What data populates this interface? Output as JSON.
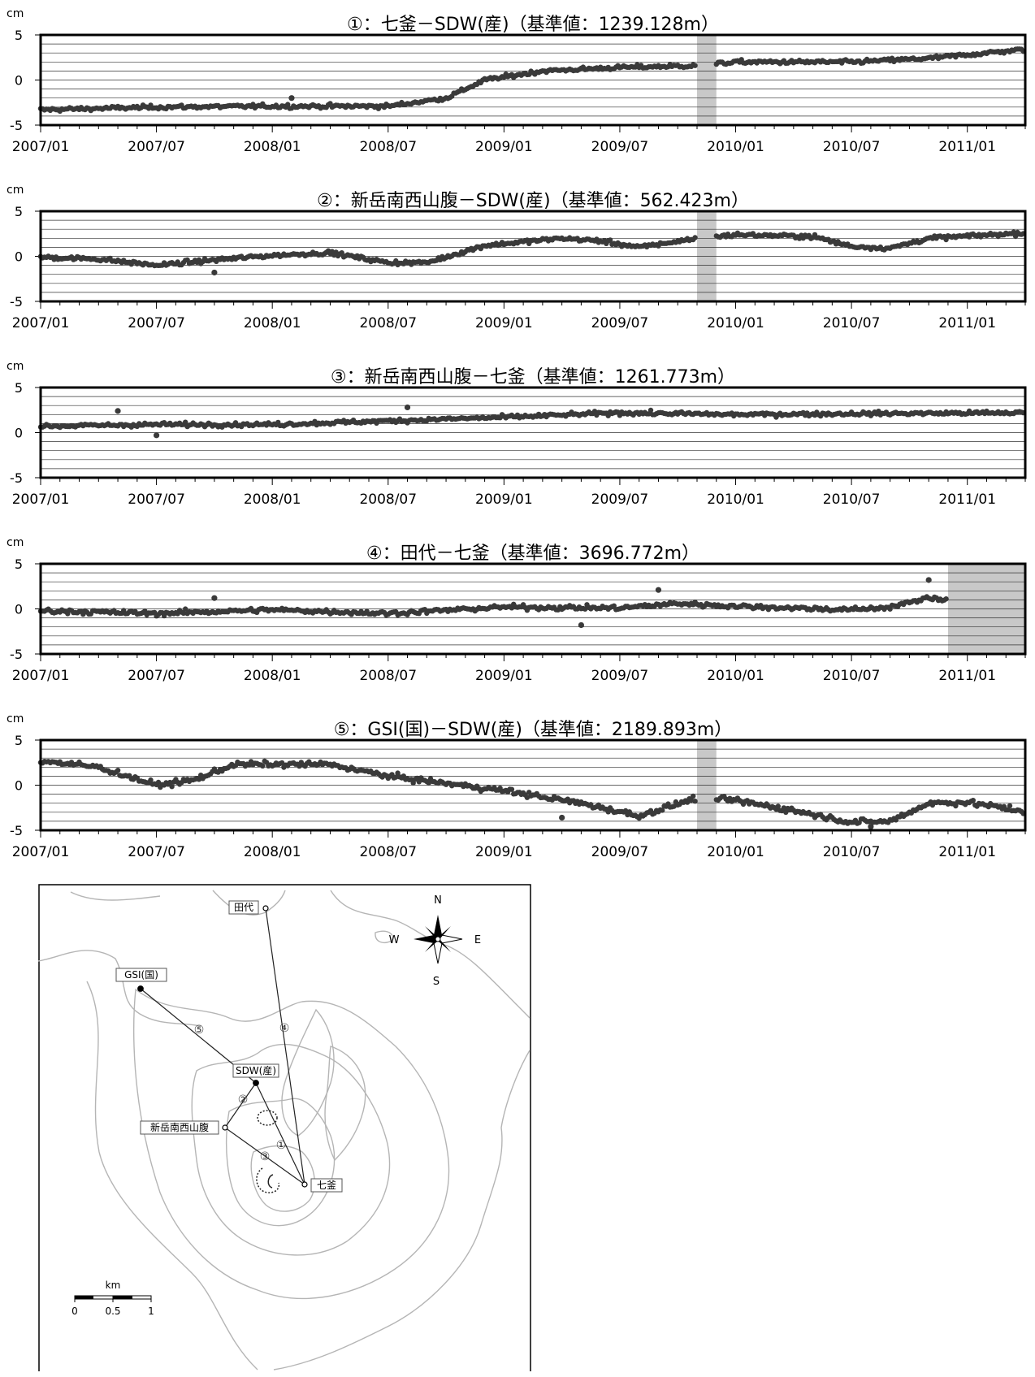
{
  "chart_data": [
    {
      "type": "scatter",
      "title": "①：七釜－SDW(産)（基準値：1239.128m）",
      "ylabel": "cm",
      "ylim": [
        -5,
        5
      ],
      "y_ticks": [
        "5",
        "0",
        "-5"
      ],
      "x_ticks": [
        "2007/01",
        "2007/07",
        "2008/01",
        "2008/07",
        "2009/01",
        "2009/07",
        "2010/01",
        "2010/07",
        "2011/01"
      ],
      "xlim": [
        "2007/01",
        "2011/04"
      ],
      "shaded_periods": [
        [
          "2009/11",
          "2009/12"
        ]
      ],
      "trend": [
        [
          "2007/01",
          -3.3
        ],
        [
          "2007/07",
          -3.0
        ],
        [
          "2008/01",
          -2.9
        ],
        [
          "2008/07",
          -2.9
        ],
        [
          "2008/10",
          -2.0
        ],
        [
          "2008/12",
          0.0
        ],
        [
          "2009/03",
          1.0
        ],
        [
          "2009/07",
          1.4
        ],
        [
          "2009/11",
          1.6
        ],
        [
          "2010/01",
          2.0
        ],
        [
          "2010/07",
          2.0
        ],
        [
          "2010/11",
          2.4
        ],
        [
          "2011/04",
          3.4
        ]
      ],
      "noise": 0.25,
      "outliers": [
        [
          "2008/02",
          -2.0
        ]
      ]
    },
    {
      "type": "scatter",
      "title": "②：新岳南西山腹－SDW(産)（基準値：562.423m）",
      "ylabel": "cm",
      "ylim": [
        -5,
        5
      ],
      "y_ticks": [
        "5",
        "0",
        "-5"
      ],
      "x_ticks": [
        "2007/01",
        "2007/07",
        "2008/01",
        "2008/07",
        "2009/01",
        "2009/07",
        "2010/01",
        "2010/07",
        "2011/01"
      ],
      "xlim": [
        "2007/01",
        "2011/04"
      ],
      "shaded_periods": [
        [
          "2009/11",
          "2009/12"
        ]
      ],
      "trend": [
        [
          "2007/01",
          -0.1
        ],
        [
          "2007/04",
          -0.3
        ],
        [
          "2007/07",
          -1.0
        ],
        [
          "2007/10",
          -0.4
        ],
        [
          "2008/01",
          0.1
        ],
        [
          "2008/04",
          0.4
        ],
        [
          "2008/07",
          -0.7
        ],
        [
          "2008/09",
          -0.7
        ],
        [
          "2008/12",
          1.2
        ],
        [
          "2009/04",
          2.0
        ],
        [
          "2009/06",
          1.7
        ],
        [
          "2009/08",
          1.0
        ],
        [
          "2009/11",
          2.0
        ],
        [
          "2010/01",
          2.4
        ],
        [
          "2010/05",
          2.2
        ],
        [
          "2010/07",
          1.1
        ],
        [
          "2010/09",
          0.9
        ],
        [
          "2010/11",
          2.0
        ],
        [
          "2011/04",
          2.6
        ]
      ],
      "noise": 0.25,
      "outliers": [
        [
          "2007/10",
          -1.8
        ]
      ]
    },
    {
      "type": "scatter",
      "title": "③：新岳南西山腹－七釜（基準値：1261.773m）",
      "ylabel": "cm",
      "ylim": [
        -5,
        5
      ],
      "y_ticks": [
        "5",
        "0",
        "-5"
      ],
      "x_ticks": [
        "2007/01",
        "2007/07",
        "2008/01",
        "2008/07",
        "2009/01",
        "2009/07",
        "2010/01",
        "2010/07",
        "2011/01"
      ],
      "xlim": [
        "2007/01",
        "2011/04"
      ],
      "shaded_periods": [],
      "trend": [
        [
          "2007/01",
          0.7
        ],
        [
          "2007/07",
          0.9
        ],
        [
          "2008/01",
          0.9
        ],
        [
          "2008/07",
          1.3
        ],
        [
          "2009/01",
          1.7
        ],
        [
          "2009/07",
          2.2
        ],
        [
          "2010/01",
          2.0
        ],
        [
          "2010/07",
          2.1
        ],
        [
          "2011/04",
          2.2
        ]
      ],
      "noise": 0.25,
      "outliers": [
        [
          "2007/05",
          2.4
        ],
        [
          "2007/07",
          -0.3
        ],
        [
          "2008/08",
          2.8
        ]
      ]
    },
    {
      "type": "scatter",
      "title": "④：田代－七釜（基準値：3696.772m）",
      "ylabel": "cm",
      "ylim": [
        -5,
        5
      ],
      "y_ticks": [
        "5",
        "0",
        "-5"
      ],
      "x_ticks": [
        "2007/01",
        "2007/07",
        "2008/01",
        "2008/07",
        "2009/01",
        "2009/07",
        "2010/01",
        "2010/07",
        "2011/01"
      ],
      "xlim": [
        "2007/01",
        "2011/04"
      ],
      "shaded_periods": [
        [
          "2010/12",
          "2011/04"
        ]
      ],
      "trend": [
        [
          "2007/01",
          -0.2
        ],
        [
          "2007/07",
          -0.5
        ],
        [
          "2008/01",
          -0.1
        ],
        [
          "2008/07",
          -0.5
        ],
        [
          "2009/01",
          0.2
        ],
        [
          "2009/07",
          0.1
        ],
        [
          "2009/10",
          0.6
        ],
        [
          "2010/01",
          0.3
        ],
        [
          "2010/07",
          -0.1
        ],
        [
          "2010/09",
          0.2
        ],
        [
          "2010/11",
          1.2
        ],
        [
          "2010/12",
          1.0
        ]
      ],
      "noise": 0.3,
      "outliers": [
        [
          "2007/10",
          1.2
        ],
        [
          "2009/05",
          -1.8
        ],
        [
          "2009/09",
          2.1
        ],
        [
          "2010/11",
          3.2
        ]
      ]
    },
    {
      "type": "scatter",
      "title": "⑤：GSI(国)－SDW(産)（基準値：2189.893m）",
      "ylabel": "cm",
      "ylim": [
        -5,
        5
      ],
      "y_ticks": [
        "5",
        "0",
        "-5"
      ],
      "x_ticks": [
        "2007/01",
        "2007/07",
        "2008/01",
        "2008/07",
        "2009/01",
        "2009/07",
        "2010/01",
        "2010/07",
        "2011/01"
      ],
      "xlim": [
        "2007/01",
        "2011/04"
      ],
      "shaded_periods": [
        [
          "2009/11",
          "2009/12"
        ]
      ],
      "trend": [
        [
          "2007/01",
          2.7
        ],
        [
          "2007/04",
          2.0
        ],
        [
          "2007/07",
          0.0
        ],
        [
          "2007/09",
          0.6
        ],
        [
          "2007/11",
          2.3
        ],
        [
          "2008/04",
          2.3
        ],
        [
          "2008/07",
          1.0
        ],
        [
          "2009/01",
          -0.6
        ],
        [
          "2009/05",
          -2.0
        ],
        [
          "2009/08",
          -3.4
        ],
        [
          "2009/11",
          -1.4
        ],
        [
          "2010/01",
          -1.7
        ],
        [
          "2010/04",
          -2.8
        ],
        [
          "2010/07",
          -4.1
        ],
        [
          "2010/09",
          -4.0
        ],
        [
          "2010/11",
          -2.0
        ],
        [
          "2011/01",
          -1.9
        ],
        [
          "2011/04",
          -2.9
        ]
      ],
      "noise": 0.35,
      "outliers": [
        [
          "2009/04",
          -3.6
        ],
        [
          "2010/08",
          -4.6
        ]
      ]
    }
  ],
  "map": {
    "compass": {
      "n": "N",
      "e": "E",
      "s": "S",
      "w": "W"
    },
    "stations": {
      "tashiro": "田代",
      "gsi": "GSI(国)",
      "sdw": "SDW(産)",
      "shindake_sw": "新岳南西山腹",
      "nanakama": "七釜"
    },
    "baseline_numbers": [
      "①",
      "②",
      "③",
      "④",
      "⑤"
    ],
    "scale": {
      "unit": "km",
      "labels": [
        "0",
        "0.5",
        "1"
      ]
    }
  }
}
